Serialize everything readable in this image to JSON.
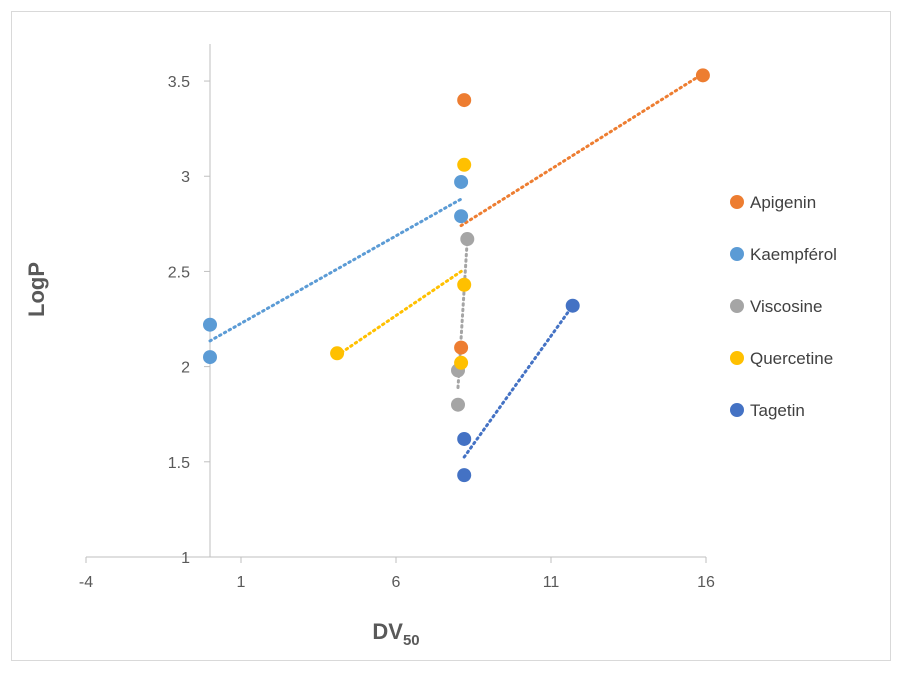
{
  "chart_data": {
    "type": "scatter",
    "title": "",
    "xlabel": "DV",
    "xlabel_subscript": "50",
    "ylabel": "LogP",
    "xlim": [
      -4,
      16
    ],
    "ylim": [
      1,
      3.6
    ],
    "x_ticks": [
      -4,
      1,
      6,
      11,
      16
    ],
    "y_ticks": [
      1,
      1.5,
      2,
      2.5,
      3,
      3.5
    ],
    "grid": false,
    "legend_position": "right",
    "trendlines": "linear, dotted",
    "series": [
      {
        "name": "Apigenin",
        "color": "#ED7D31",
        "x": [
          15.9,
          8.2,
          8.1
        ],
        "y": [
          3.53,
          3.4,
          2.1
        ]
      },
      {
        "name": "Kaempférol",
        "color": "#5B9BD5",
        "x": [
          0.0,
          0.0,
          8.1,
          8.1
        ],
        "y": [
          2.22,
          2.05,
          2.97,
          2.79
        ]
      },
      {
        "name": "Viscosine",
        "color": "#A5A5A5",
        "x": [
          8.3,
          8.0,
          8.0
        ],
        "y": [
          2.67,
          1.98,
          1.8
        ]
      },
      {
        "name": "Quercetine",
        "color": "#FFC000",
        "x": [
          4.1,
          8.2,
          8.2,
          8.1
        ],
        "y": [
          2.07,
          3.06,
          2.43,
          2.02
        ]
      },
      {
        "name": "Tagetin",
        "color": "#4472C4",
        "x": [
          11.7,
          8.2,
          8.2
        ],
        "y": [
          2.32,
          1.62,
          1.43
        ]
      }
    ]
  }
}
